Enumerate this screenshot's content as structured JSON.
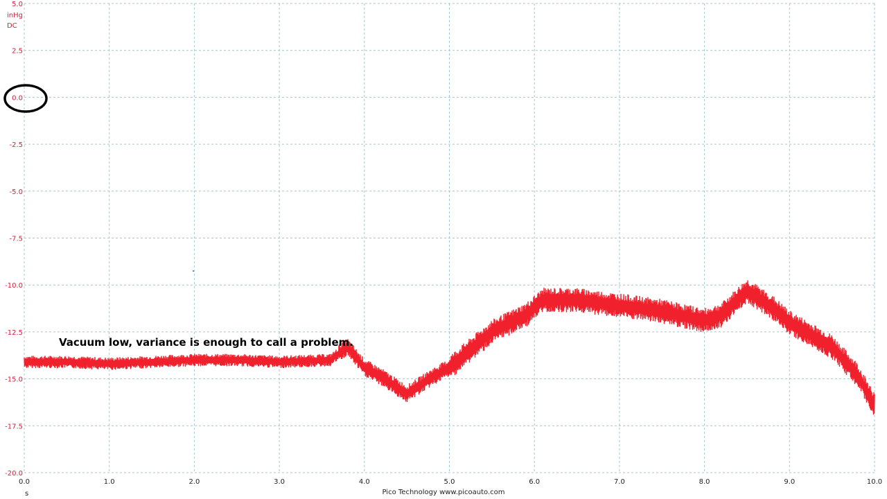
{
  "chart_data": {
    "type": "line",
    "xlabel": "s",
    "ylabel": "inHg",
    "ylabel_coupling": "DC",
    "xlim": [
      0,
      10
    ],
    "ylim": [
      -20,
      5
    ],
    "xticks": [
      "0.0",
      "1.0",
      "2.0",
      "3.0",
      "4.0",
      "5.0",
      "6.0",
      "7.0",
      "8.0",
      "9.0",
      "10.0"
    ],
    "yticks": [
      "5.0",
      "2.5",
      "0.0",
      "-2.5",
      "-5.0",
      "-7.5",
      "-10.0",
      "-12.5",
      "-15.0",
      "-17.5",
      "-20.0"
    ],
    "grid": true,
    "series_color": "#f0202c",
    "series": [
      {
        "x": [
          0,
          0.5,
          1.0,
          1.5,
          2.0,
          2.5,
          3.0,
          3.6,
          3.8,
          4.0,
          4.2,
          4.5,
          4.8,
          5.0,
          5.5,
          5.9,
          6.1,
          6.5,
          7.0,
          7.5,
          8.0,
          8.2,
          8.5,
          8.8,
          9.0,
          9.5,
          9.8,
          10.0
        ],
        "y": [
          -14.1,
          -14.1,
          -14.2,
          -14.1,
          -14.0,
          -14.0,
          -14.1,
          -14.0,
          -13.3,
          -14.4,
          -14.9,
          -15.8,
          -14.9,
          -14.4,
          -12.5,
          -11.6,
          -10.8,
          -10.8,
          -11.1,
          -11.4,
          -11.9,
          -11.6,
          -10.3,
          -11.2,
          -12.0,
          -13.3,
          -14.8,
          -16.4
        ]
      }
    ],
    "annotations": [
      "Vacuum low, variance is enough to call a problem."
    ],
    "highlight": "circle around 0.0 y-axis label"
  },
  "footer": "Pico Technology  www.picoauto.com"
}
